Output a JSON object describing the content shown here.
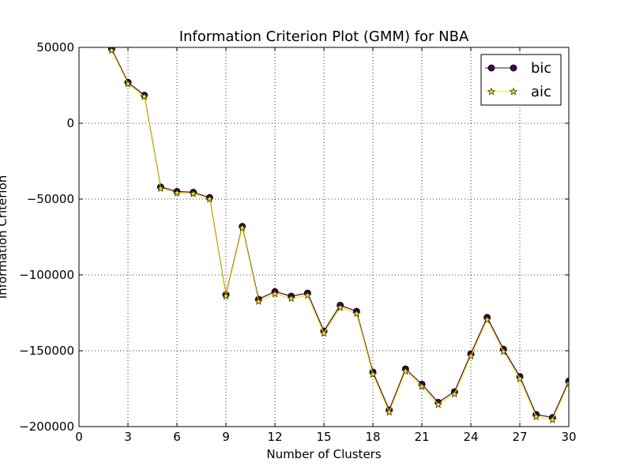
{
  "chart_data": {
    "type": "line",
    "title": "Information Criterion Plot (GMM) for NBA",
    "xlabel": "Number of Clusters",
    "ylabel": "Information Criterion",
    "xlim": [
      0,
      30
    ],
    "ylim": [
      -200000,
      50000
    ],
    "xticks": [
      0,
      3,
      6,
      9,
      12,
      15,
      18,
      21,
      24,
      27,
      30
    ],
    "xtick_labels": [
      "0",
      "3",
      "6",
      "9",
      "12",
      "15",
      "18",
      "21",
      "24",
      "27",
      "30"
    ],
    "yticks": [
      50000,
      0,
      -50000,
      -100000,
      -150000,
      -200000
    ],
    "ytick_labels": [
      "50000",
      "0",
      "−50000",
      "−100000",
      "−150000",
      "−200000"
    ],
    "grid": true,
    "legend_position": "top-right",
    "x": [
      2,
      3,
      4,
      5,
      6,
      7,
      8,
      9,
      10,
      11,
      12,
      13,
      14,
      15,
      16,
      17,
      18,
      19,
      20,
      21,
      22,
      23,
      24,
      25,
      26,
      27,
      28,
      29,
      30
    ],
    "series": [
      {
        "name": "bic",
        "color": "#3b0a45",
        "marker": "circle",
        "values": [
          49000,
          27000,
          18500,
          -42000,
          -45000,
          -45500,
          -49000,
          -113000,
          -68000,
          -116000,
          -111000,
          -114000,
          -112000,
          -137000,
          -120000,
          -124000,
          -164000,
          -189000,
          -162000,
          -172000,
          -184000,
          -177000,
          -152000,
          -128000,
          -149000,
          -167000,
          -192000,
          -194000,
          -170000
        ]
      },
      {
        "name": "aic",
        "color": "#f5e11a",
        "marker": "star",
        "values": [
          48000,
          26000,
          17500,
          -43000,
          -46000,
          -46500,
          -50000,
          -114000,
          -69000,
          -117500,
          -112500,
          -115500,
          -113500,
          -138500,
          -121500,
          -125500,
          -165500,
          -190500,
          -163500,
          -173500,
          -185500,
          -178500,
          -153500,
          -129500,
          -150500,
          -168500,
          -193500,
          -195500,
          -171500
        ]
      }
    ]
  }
}
